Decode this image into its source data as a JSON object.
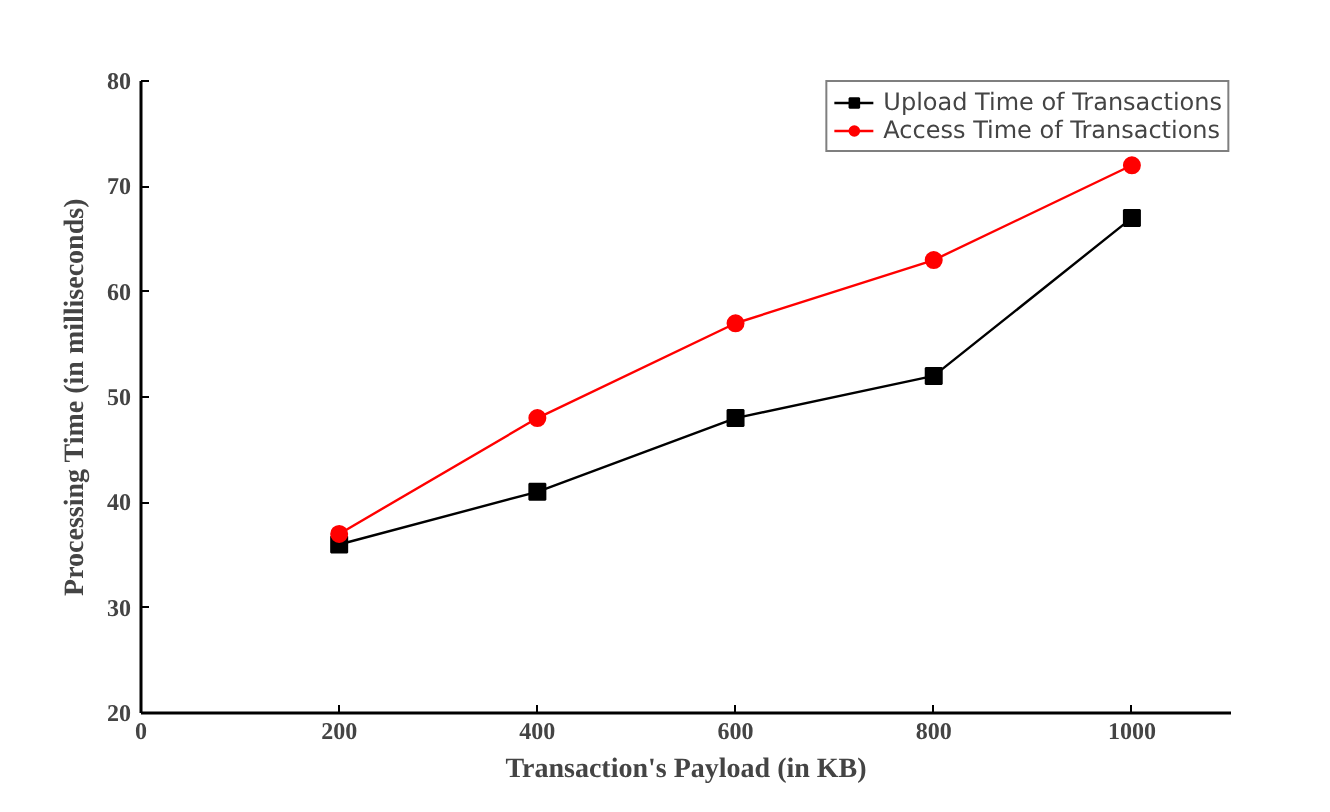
{
  "chart_data": {
    "type": "line",
    "xlabel": "Transaction's Payload (in KB)",
    "ylabel": "Processing Time (in milliseconds)",
    "x": [
      200,
      400,
      600,
      800,
      1000
    ],
    "series": [
      {
        "name": "Upload Time of Transactions",
        "color": "#000000",
        "marker": "square",
        "values": [
          36,
          41,
          48,
          52,
          67
        ]
      },
      {
        "name": "Access Time of Transactions",
        "color": "#ff0000",
        "marker": "circle",
        "values": [
          37,
          48,
          57,
          63,
          72
        ]
      }
    ],
    "xlim": [
      0,
      1100
    ],
    "xticks": [
      0,
      200,
      400,
      600,
      800,
      1000
    ],
    "ylim": [
      20,
      80
    ],
    "yticks": [
      20,
      30,
      40,
      50,
      60,
      70,
      80
    ],
    "grid": false,
    "legend": "top right",
    "line_style": "solid"
  }
}
